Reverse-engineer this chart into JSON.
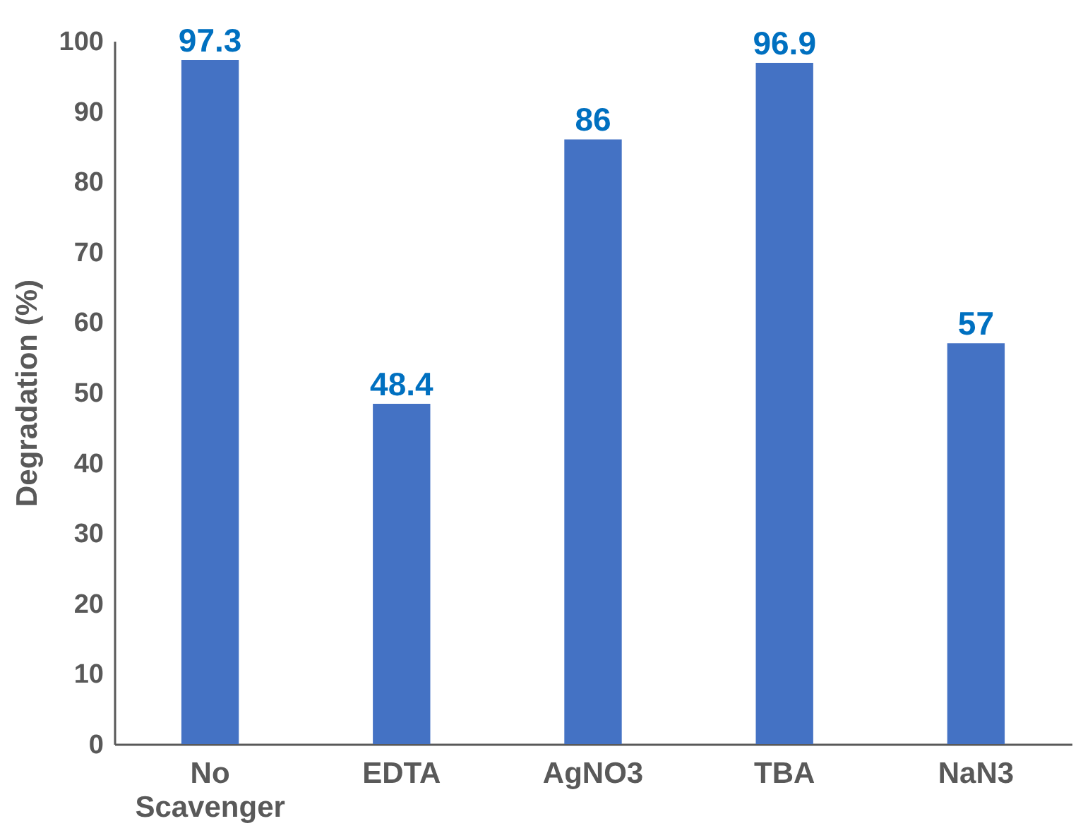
{
  "chart_data": {
    "type": "bar",
    "ylabel": "Degradation (%)",
    "categories": [
      "No Scavenger",
      "EDTA",
      "AgNO3",
      "TBA",
      "NaN3"
    ],
    "values": [
      97.3,
      48.4,
      86,
      96.9,
      57
    ],
    "color": "#4472c4",
    "data_labels": true,
    "ylim": [
      0,
      100
    ],
    "yticks": [
      0,
      10,
      20,
      30,
      40,
      50,
      60,
      70,
      80,
      90,
      100
    ],
    "grid": false
  }
}
